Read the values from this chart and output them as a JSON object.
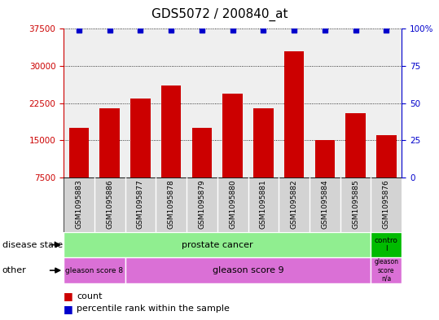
{
  "title": "GDS5072 / 200840_at",
  "samples": [
    "GSM1095883",
    "GSM1095886",
    "GSM1095877",
    "GSM1095878",
    "GSM1095879",
    "GSM1095880",
    "GSM1095881",
    "GSM1095882",
    "GSM1095884",
    "GSM1095885",
    "GSM1095876"
  ],
  "counts": [
    17500,
    21500,
    23500,
    26000,
    17500,
    24500,
    21500,
    33000,
    15000,
    20500,
    16000
  ],
  "percentile": [
    99,
    99,
    99,
    99,
    99,
    99,
    99,
    99,
    99,
    99,
    99
  ],
  "ylim_left": [
    7500,
    37500
  ],
  "ylim_right": [
    0,
    100
  ],
  "yticks_left": [
    7500,
    15000,
    22500,
    30000,
    37500
  ],
  "yticks_right": [
    0,
    25,
    50,
    75,
    100
  ],
  "bar_color": "#cc0000",
  "percentile_color": "#0000cc",
  "disease_state_prostate": "prostate cancer",
  "disease_state_control": "contro\nl",
  "disease_state_prostate_color": "#90ee90",
  "disease_state_control_color": "#00bb00",
  "other_gs8": "gleason score 8",
  "other_gs9": "gleason score 9",
  "other_gsna": "gleason\nscore\nn/a",
  "other_color": "#da70d6",
  "legend_count_color": "#cc0000",
  "legend_percentile_color": "#0000cc",
  "n_samples": 11,
  "prostate_sample_count": 10,
  "gs8_sample_count": 2,
  "gs9_sample_count": 8,
  "label_row_color": "#c0c0c0",
  "title_fontsize": 11
}
